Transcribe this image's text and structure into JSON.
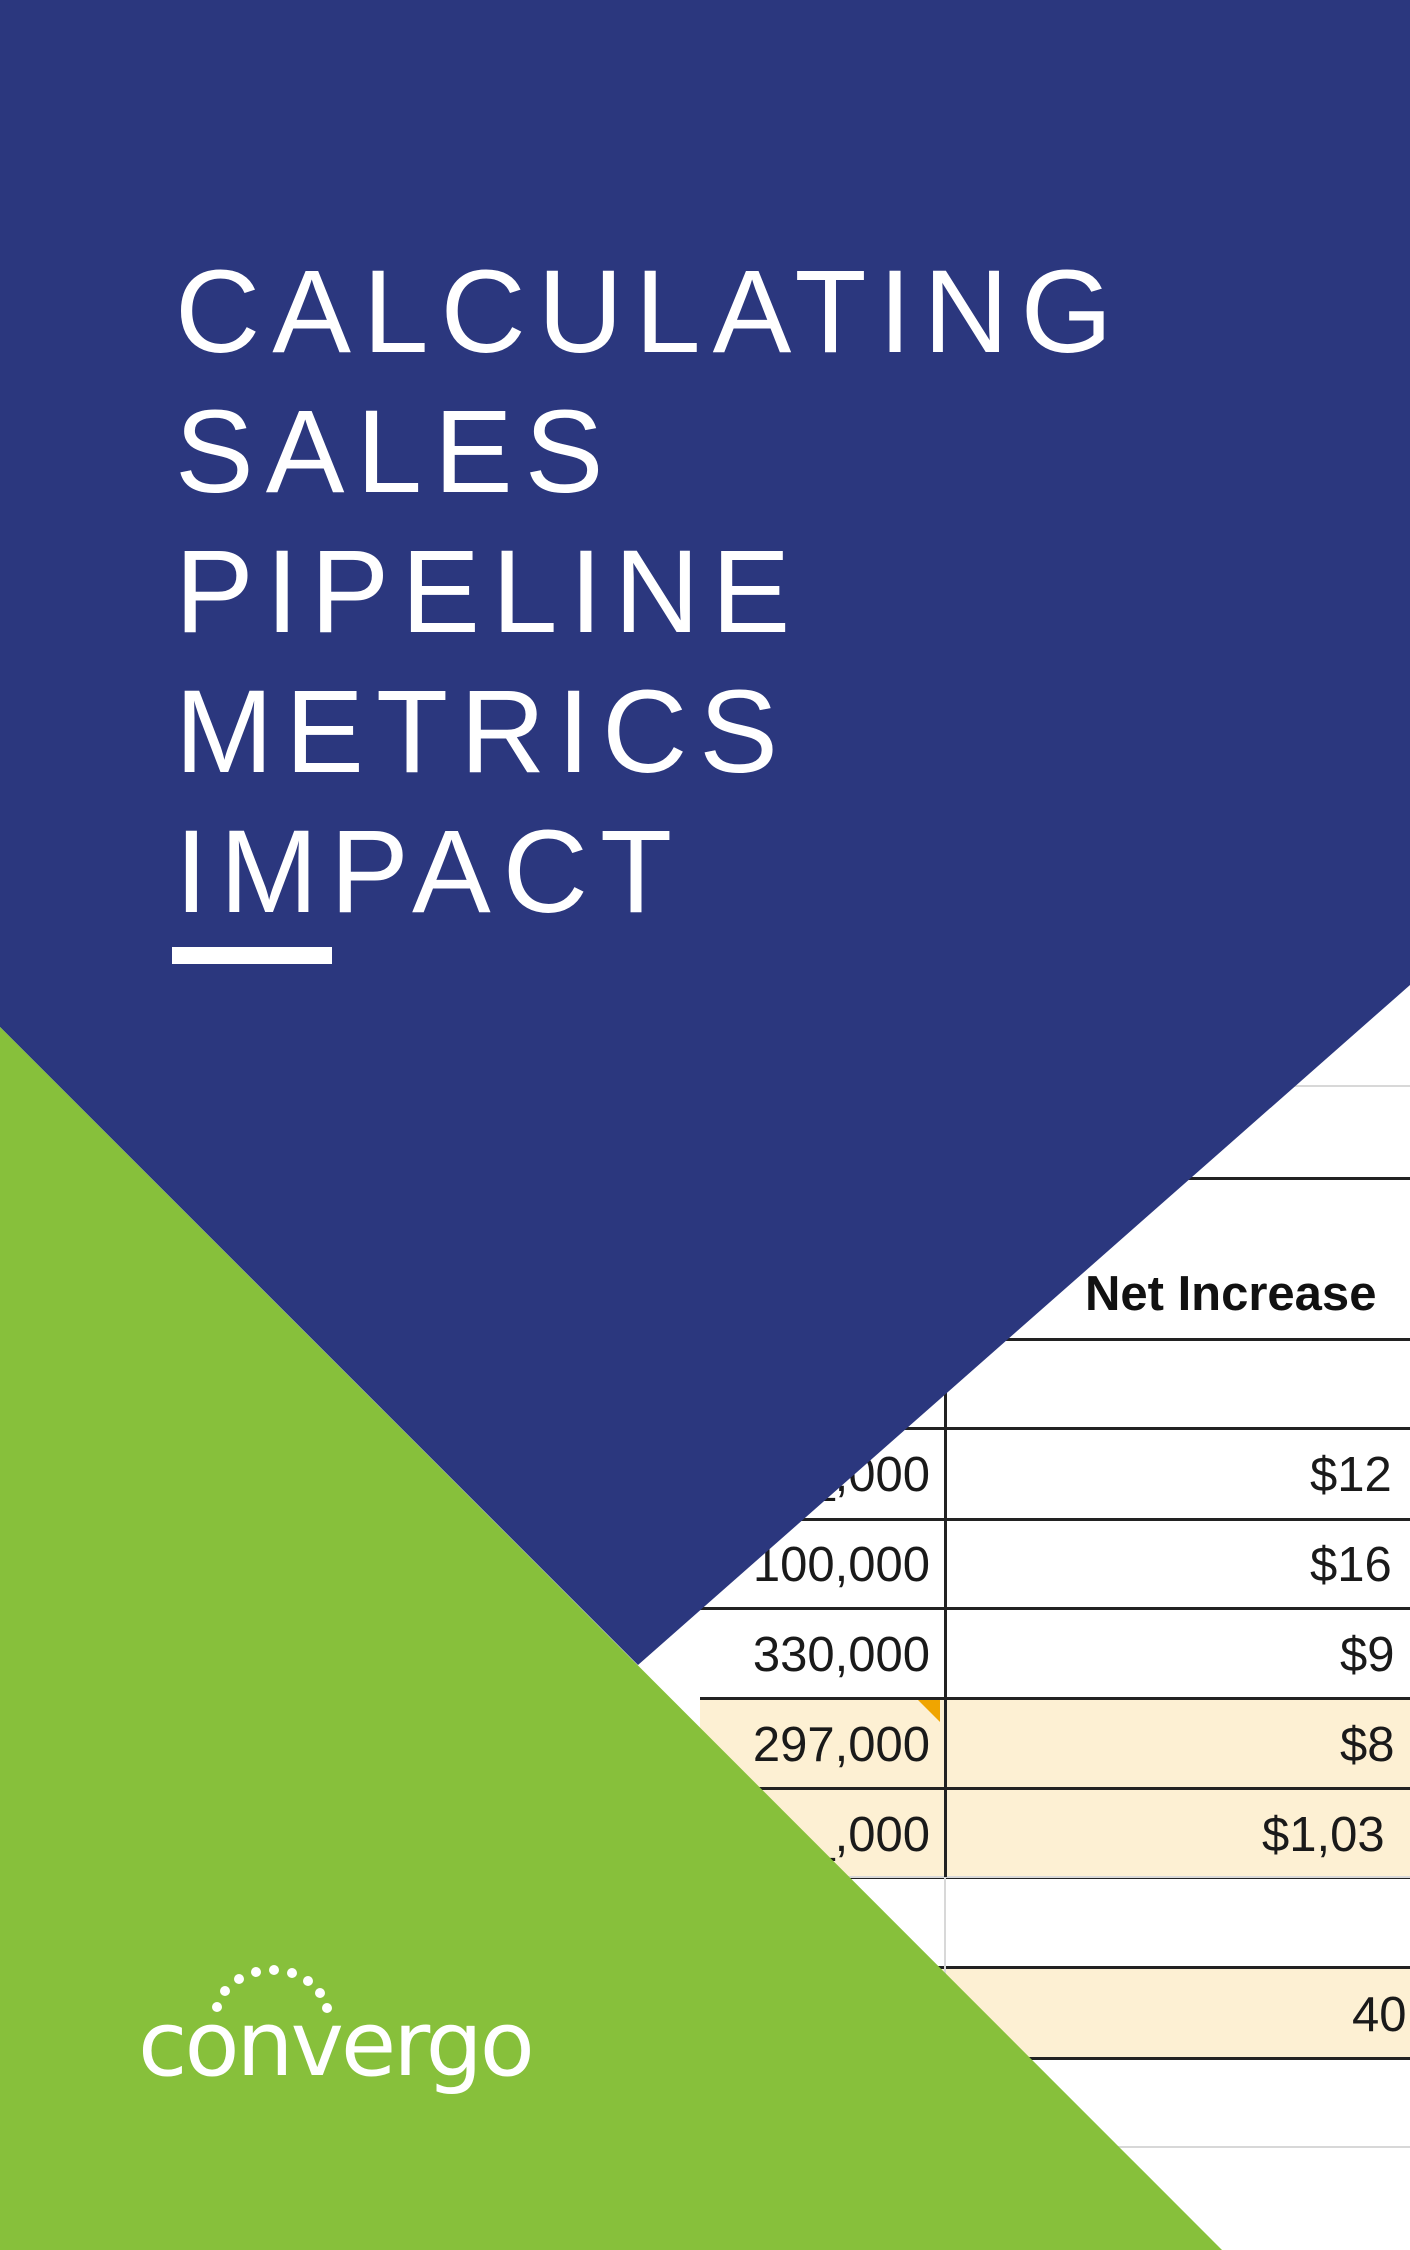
{
  "cover": {
    "title_lines": [
      "CALCULATING",
      "SALES",
      "PIPELINE",
      "METRICS",
      "IMPACT"
    ]
  },
  "spreadsheet": {
    "header": "Net Increase",
    "left_column": [
      "_,000",
      "100,000",
      "330,000",
      "297,000",
      "_,000"
    ],
    "right_column": [
      "$12",
      "$16",
      "$9",
      "$8",
      "$1,03"
    ],
    "bottom_value": "40",
    "highlight_color": "#fdf0d3"
  },
  "brand": {
    "logo_text": "convergo",
    "colors": {
      "navy": "#2b377e",
      "green": "#87c03b",
      "white": "#ffffff"
    }
  }
}
